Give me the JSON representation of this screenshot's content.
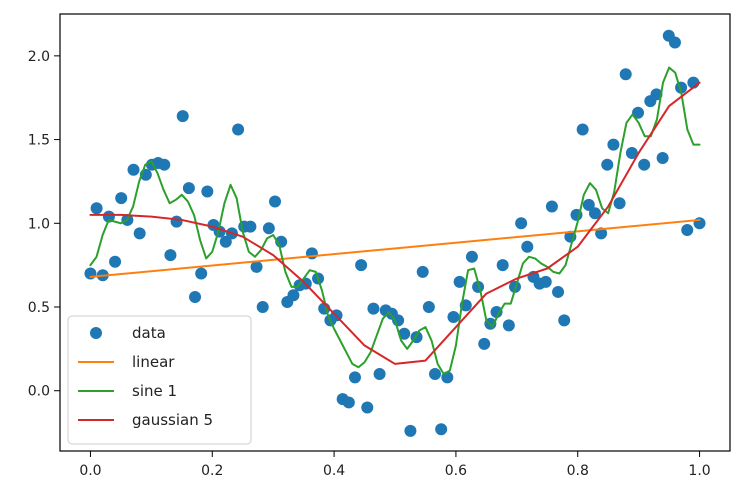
{
  "chart_data": {
    "type": "scatter",
    "title": "",
    "xlabel": "",
    "ylabel": "",
    "xlim": [
      -0.05,
      1.05
    ],
    "ylim": [
      -0.36,
      2.25
    ],
    "xticks": [
      0.0,
      0.2,
      0.4,
      0.6,
      0.8,
      1.0
    ],
    "xtick_labels": [
      "0.0",
      "0.2",
      "0.4",
      "0.6",
      "0.8",
      "1.0"
    ],
    "yticks": [
      0.0,
      0.5,
      1.0,
      1.5,
      2.0
    ],
    "ytick_labels": [
      "0.0",
      "0.5",
      "1.0",
      "1.5",
      "2.0"
    ],
    "grid": false,
    "legend_position": "lower-left",
    "series": [
      {
        "name": "data",
        "kind": "points",
        "color": "#1f77b4",
        "x": [
          0.0,
          0.0101,
          0.0202,
          0.0303,
          0.0404,
          0.0505,
          0.0606,
          0.0707,
          0.0808,
          0.0909,
          0.101,
          0.1111,
          0.1212,
          0.1313,
          0.1414,
          0.1515,
          0.1616,
          0.1717,
          0.1818,
          0.1919,
          0.202,
          0.2121,
          0.2222,
          0.2323,
          0.2424,
          0.2525,
          0.2626,
          0.2727,
          0.2828,
          0.2929,
          0.303,
          0.3131,
          0.3232,
          0.3333,
          0.3434,
          0.3535,
          0.3636,
          0.3737,
          0.3838,
          0.3939,
          0.404,
          0.4141,
          0.4242,
          0.4343,
          0.4444,
          0.4545,
          0.4646,
          0.4747,
          0.4848,
          0.4949,
          0.5051,
          0.5152,
          0.5253,
          0.5354,
          0.5455,
          0.5556,
          0.5657,
          0.5758,
          0.5859,
          0.596,
          0.6061,
          0.6162,
          0.6263,
          0.6364,
          0.6465,
          0.6566,
          0.6667,
          0.6768,
          0.6869,
          0.697,
          0.7071,
          0.7172,
          0.7273,
          0.7374,
          0.7475,
          0.7576,
          0.7677,
          0.7778,
          0.7879,
          0.798,
          0.8081,
          0.8182,
          0.8283,
          0.8384,
          0.8485,
          0.8586,
          0.8687,
          0.8788,
          0.8889,
          0.899,
          0.9091,
          0.9192,
          0.9293,
          0.9394,
          0.9495,
          0.9596,
          0.9697,
          0.9798,
          0.9899,
          1.0
        ],
        "y": [
          0.7,
          1.09,
          0.69,
          1.04,
          0.77,
          1.15,
          1.02,
          1.32,
          0.94,
          1.29,
          1.35,
          1.36,
          1.35,
          0.81,
          1.01,
          1.64,
          1.21,
          0.56,
          0.7,
          1.19,
          0.99,
          0.95,
          0.89,
          0.94,
          1.56,
          0.98,
          0.98,
          0.74,
          0.5,
          0.97,
          1.13,
          0.89,
          0.53,
          0.57,
          0.63,
          0.64,
          0.82,
          0.67,
          0.49,
          0.42,
          0.45,
          -0.05,
          -0.07,
          0.08,
          0.75,
          -0.1,
          0.49,
          0.1,
          0.48,
          0.46,
          0.42,
          0.34,
          -0.24,
          0.32,
          0.71,
          0.5,
          0.1,
          -0.23,
          0.08,
          0.44,
          0.65,
          0.51,
          0.8,
          0.62,
          0.28,
          0.4,
          0.47,
          0.75,
          0.39,
          0.62,
          1.0,
          0.86,
          0.68,
          0.64,
          0.65,
          1.1,
          0.59,
          0.42,
          0.92,
          1.05,
          1.56,
          1.11,
          1.06,
          0.94,
          1.35,
          1.47,
          1.12,
          1.89,
          1.42,
          1.66,
          1.35,
          1.73,
          1.77,
          1.39,
          2.12,
          2.08,
          1.81,
          0.96,
          1.84,
          1.0
        ]
      },
      {
        "name": "linear",
        "kind": "line",
        "color": "#ff7f0e",
        "x": [
          0.0,
          1.0
        ],
        "y": [
          0.68,
          1.02
        ]
      },
      {
        "name": "sine 1",
        "kind": "line",
        "color": "#2ca02c",
        "x": [
          0.0,
          0.01,
          0.02,
          0.03,
          0.04,
          0.05,
          0.06,
          0.07,
          0.08,
          0.09,
          0.1,
          0.11,
          0.12,
          0.13,
          0.14,
          0.15,
          0.16,
          0.17,
          0.18,
          0.19,
          0.2,
          0.21,
          0.22,
          0.23,
          0.24,
          0.25,
          0.26,
          0.27,
          0.28,
          0.29,
          0.3,
          0.31,
          0.32,
          0.33,
          0.34,
          0.35,
          0.36,
          0.37,
          0.38,
          0.39,
          0.4,
          0.41,
          0.42,
          0.43,
          0.44,
          0.45,
          0.46,
          0.47,
          0.48,
          0.49,
          0.5,
          0.51,
          0.52,
          0.53,
          0.54,
          0.55,
          0.56,
          0.57,
          0.58,
          0.59,
          0.6,
          0.61,
          0.62,
          0.63,
          0.64,
          0.65,
          0.66,
          0.67,
          0.68,
          0.69,
          0.7,
          0.71,
          0.72,
          0.73,
          0.74,
          0.75,
          0.76,
          0.77,
          0.78,
          0.79,
          0.8,
          0.81,
          0.82,
          0.83,
          0.84,
          0.85,
          0.86,
          0.87,
          0.88,
          0.89,
          0.9,
          0.91,
          0.92,
          0.93,
          0.94,
          0.95,
          0.96,
          0.97,
          0.98,
          0.99,
          1.0
        ],
        "y": [
          0.75,
          0.8,
          0.93,
          1.02,
          1.01,
          1.0,
          1.02,
          1.1,
          1.25,
          1.35,
          1.37,
          1.3,
          1.2,
          1.12,
          1.14,
          1.17,
          1.13,
          1.05,
          0.9,
          0.79,
          0.83,
          0.95,
          1.12,
          1.23,
          1.15,
          0.95,
          0.83,
          0.8,
          0.84,
          0.91,
          0.93,
          0.87,
          0.71,
          0.62,
          0.62,
          0.67,
          0.72,
          0.71,
          0.6,
          0.45,
          0.37,
          0.3,
          0.23,
          0.16,
          0.14,
          0.17,
          0.23,
          0.33,
          0.43,
          0.47,
          0.42,
          0.3,
          0.25,
          0.3,
          0.36,
          0.38,
          0.3,
          0.16,
          0.1,
          0.12,
          0.27,
          0.52,
          0.72,
          0.73,
          0.6,
          0.42,
          0.38,
          0.46,
          0.52,
          0.52,
          0.64,
          0.76,
          0.8,
          0.79,
          0.76,
          0.74,
          0.71,
          0.7,
          0.75,
          0.88,
          1.01,
          1.17,
          1.24,
          1.2,
          1.09,
          1.06,
          1.19,
          1.42,
          1.6,
          1.65,
          1.6,
          1.52,
          1.52,
          1.62,
          1.84,
          1.93,
          1.9,
          1.78,
          1.56,
          1.47,
          1.47
        ]
      },
      {
        "name": "gaussian 5",
        "kind": "line",
        "color": "#d62728",
        "x": [
          0.0,
          0.05,
          0.1,
          0.15,
          0.2,
          0.25,
          0.3,
          0.35,
          0.4,
          0.45,
          0.5,
          0.55,
          0.6,
          0.65,
          0.7,
          0.75,
          0.8,
          0.85,
          0.9,
          0.95,
          1.0
        ],
        "y": [
          1.05,
          1.05,
          1.04,
          1.02,
          0.98,
          0.92,
          0.81,
          0.65,
          0.46,
          0.27,
          0.16,
          0.18,
          0.38,
          0.58,
          0.67,
          0.73,
          0.86,
          1.1,
          1.42,
          1.7,
          1.84
        ]
      }
    ]
  }
}
